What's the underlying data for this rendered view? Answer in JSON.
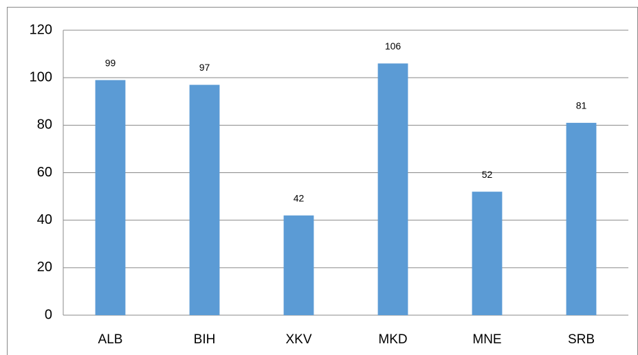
{
  "chart_data": {
    "type": "bar",
    "categories": [
      "ALB",
      "BIH",
      "XKV",
      "MKD",
      "MNE",
      "SRB"
    ],
    "values": [
      99,
      97,
      42,
      106,
      52,
      81
    ],
    "color": "#5b9bd5",
    "ylim": [
      0,
      120
    ],
    "yticks": [
      0,
      20,
      40,
      60,
      80,
      100,
      120
    ],
    "grid": true
  }
}
